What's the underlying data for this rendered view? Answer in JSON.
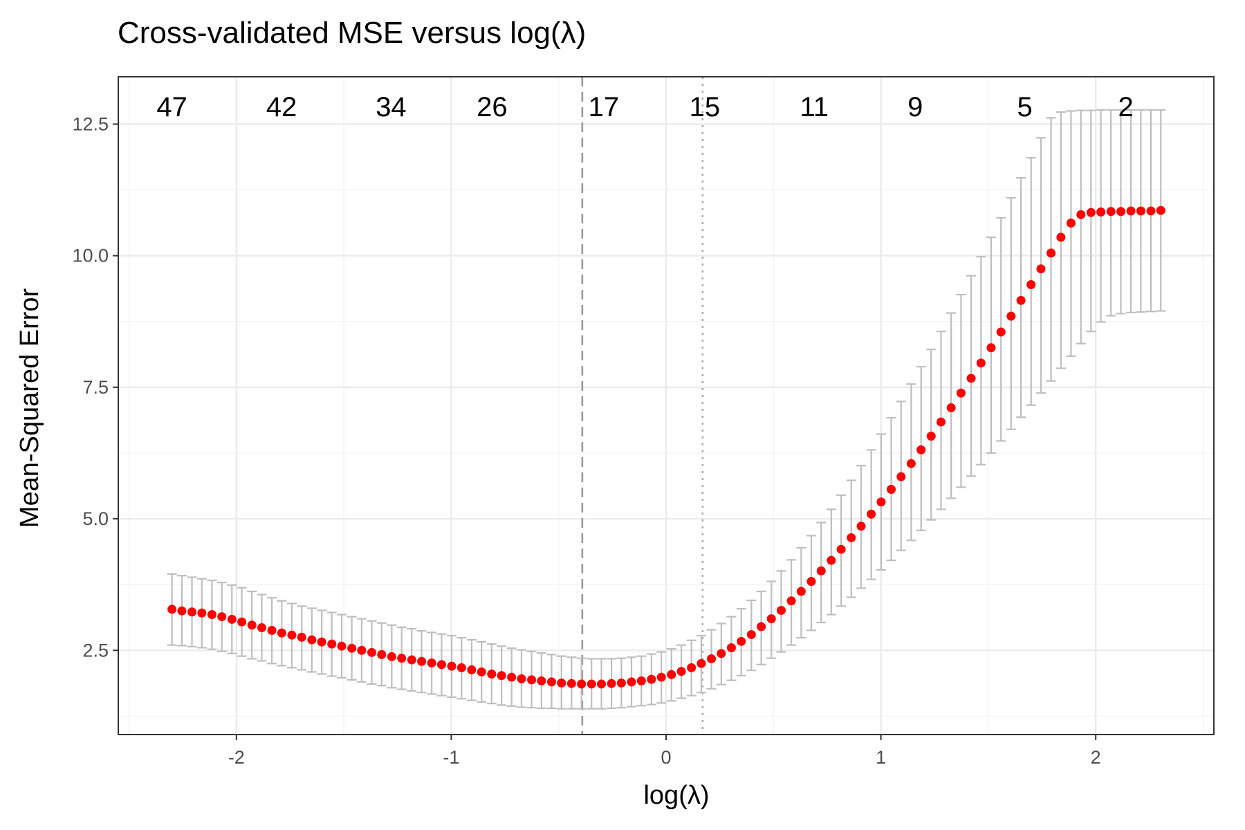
{
  "chart_data": {
    "type": "scatter",
    "title": "Cross-validated MSE versus log(λ)",
    "xlabel": "log(λ)",
    "ylabel": "Mean-Squared Error",
    "xlim": [
      -2.55,
      2.55
    ],
    "ylim": [
      0.9,
      13.4
    ],
    "x_ticks": [
      -2,
      -1,
      0,
      1,
      2
    ],
    "x_tick_labels": [
      "-2",
      "-1",
      "0",
      "1",
      "2"
    ],
    "y_ticks": [
      2.5,
      5.0,
      7.5,
      10.0,
      12.5
    ],
    "y_tick_labels": [
      "2.5",
      "5.0",
      "7.5",
      "10.0",
      "12.5"
    ],
    "grid": true,
    "legend": "none",
    "vlines": [
      {
        "name": "lambda.min",
        "x": -0.39,
        "style": "dashed",
        "color": "#999999"
      },
      {
        "name": "lambda.1se",
        "x": 0.17,
        "style": "dotted",
        "color": "#aaaaaa"
      }
    ],
    "top_counts": [
      {
        "x": -2.3,
        "label": "47"
      },
      {
        "x": -1.79,
        "label": "42"
      },
      {
        "x": -1.28,
        "label": "34"
      },
      {
        "x": -0.81,
        "label": "26"
      },
      {
        "x": -0.29,
        "label": "17"
      },
      {
        "x": 0.18,
        "label": "15"
      },
      {
        "x": 0.69,
        "label": "11"
      },
      {
        "x": 1.16,
        "label": "9"
      },
      {
        "x": 1.67,
        "label": "5"
      },
      {
        "x": 2.14,
        "label": "2"
      }
    ],
    "series": [
      {
        "color": "#ff0000",
        "errorbar_color": "#bebebe",
        "x": [
          -2.3,
          -2.254,
          -2.207,
          -2.161,
          -2.114,
          -2.068,
          -2.021,
          -1.975,
          -1.928,
          -1.882,
          -1.835,
          -1.789,
          -1.742,
          -1.696,
          -1.649,
          -1.603,
          -1.556,
          -1.51,
          -1.463,
          -1.417,
          -1.37,
          -1.324,
          -1.277,
          -1.231,
          -1.184,
          -1.138,
          -1.091,
          -1.045,
          -0.998,
          -0.952,
          -0.905,
          -0.859,
          -0.812,
          -0.766,
          -0.719,
          -0.673,
          -0.626,
          -0.58,
          -0.533,
          -0.487,
          -0.44,
          -0.394,
          -0.347,
          -0.301,
          -0.254,
          -0.208,
          -0.161,
          -0.115,
          -0.068,
          -0.022,
          0.025,
          0.071,
          0.118,
          0.164,
          0.211,
          0.257,
          0.304,
          0.35,
          0.397,
          0.443,
          0.49,
          0.536,
          0.583,
          0.629,
          0.676,
          0.722,
          0.769,
          0.815,
          0.862,
          0.908,
          0.955,
          1.001,
          1.048,
          1.094,
          1.141,
          1.187,
          1.234,
          1.28,
          1.327,
          1.373,
          1.42,
          1.466,
          1.513,
          1.559,
          1.606,
          1.652,
          1.699,
          1.745,
          1.792,
          1.838,
          1.885,
          1.931,
          1.978,
          2.024,
          2.071,
          2.117,
          2.164,
          2.21,
          2.257,
          2.303
        ],
        "y": [
          3.28,
          3.25,
          3.23,
          3.21,
          3.18,
          3.14,
          3.09,
          3.04,
          2.98,
          2.93,
          2.88,
          2.83,
          2.79,
          2.75,
          2.7,
          2.66,
          2.62,
          2.58,
          2.54,
          2.5,
          2.46,
          2.42,
          2.38,
          2.35,
          2.32,
          2.29,
          2.26,
          2.23,
          2.2,
          2.17,
          2.13,
          2.09,
          2.05,
          2.02,
          1.99,
          1.96,
          1.94,
          1.92,
          1.9,
          1.88,
          1.87,
          1.86,
          1.86,
          1.86,
          1.87,
          1.88,
          1.9,
          1.92,
          1.95,
          1.99,
          2.04,
          2.1,
          2.17,
          2.25,
          2.34,
          2.44,
          2.55,
          2.67,
          2.8,
          2.95,
          3.1,
          3.26,
          3.44,
          3.62,
          3.81,
          4.01,
          4.21,
          4.42,
          4.64,
          4.86,
          5.09,
          5.32,
          5.56,
          5.8,
          6.05,
          6.31,
          6.57,
          6.84,
          7.11,
          7.39,
          7.67,
          7.96,
          8.25,
          8.55,
          8.85,
          9.15,
          9.45,
          9.75,
          10.05,
          10.35,
          10.62,
          10.78,
          10.82,
          10.83,
          10.84,
          10.84,
          10.85,
          10.85,
          10.85,
          10.86
        ],
        "lower": [
          2.6,
          2.59,
          2.57,
          2.55,
          2.52,
          2.48,
          2.44,
          2.39,
          2.34,
          2.3,
          2.25,
          2.21,
          2.17,
          2.13,
          2.09,
          2.05,
          2.01,
          1.98,
          1.94,
          1.9,
          1.86,
          1.83,
          1.79,
          1.76,
          1.73,
          1.7,
          1.67,
          1.64,
          1.61,
          1.58,
          1.55,
          1.52,
          1.49,
          1.46,
          1.44,
          1.42,
          1.41,
          1.4,
          1.4,
          1.39,
          1.39,
          1.39,
          1.39,
          1.39,
          1.4,
          1.41,
          1.43,
          1.45,
          1.47,
          1.5,
          1.54,
          1.59,
          1.64,
          1.7,
          1.77,
          1.85,
          1.93,
          2.02,
          2.12,
          2.23,
          2.35,
          2.47,
          2.6,
          2.74,
          2.88,
          3.03,
          3.18,
          3.34,
          3.51,
          3.68,
          3.85,
          4.03,
          4.21,
          4.4,
          4.59,
          4.78,
          4.98,
          5.18,
          5.39,
          5.6,
          5.81,
          6.03,
          6.25,
          6.48,
          6.7,
          6.93,
          7.16,
          7.39,
          7.62,
          7.86,
          8.09,
          8.33,
          8.56,
          8.74,
          8.86,
          8.9,
          8.92,
          8.93,
          8.94,
          8.95
        ],
        "upper": [
          3.95,
          3.92,
          3.89,
          3.86,
          3.83,
          3.79,
          3.74,
          3.69,
          3.62,
          3.56,
          3.5,
          3.44,
          3.39,
          3.34,
          3.3,
          3.26,
          3.22,
          3.18,
          3.14,
          3.1,
          3.06,
          3.02,
          2.98,
          2.94,
          2.91,
          2.87,
          2.84,
          2.81,
          2.78,
          2.74,
          2.7,
          2.66,
          2.62,
          2.58,
          2.54,
          2.51,
          2.48,
          2.45,
          2.42,
          2.39,
          2.37,
          2.35,
          2.34,
          2.34,
          2.34,
          2.35,
          2.37,
          2.39,
          2.43,
          2.47,
          2.53,
          2.6,
          2.69,
          2.78,
          2.89,
          3.01,
          3.14,
          3.29,
          3.45,
          3.62,
          3.81,
          4.01,
          4.22,
          4.45,
          4.68,
          4.93,
          5.18,
          5.45,
          5.73,
          6.01,
          6.31,
          6.61,
          6.92,
          7.23,
          7.56,
          7.89,
          8.22,
          8.56,
          8.91,
          9.26,
          9.62,
          9.98,
          10.35,
          10.72,
          11.1,
          11.48,
          11.86,
          12.24,
          12.62,
          12.73,
          12.75,
          12.76,
          12.76,
          12.77,
          12.77,
          12.77,
          12.77,
          12.77,
          12.77,
          12.77
        ]
      }
    ]
  }
}
